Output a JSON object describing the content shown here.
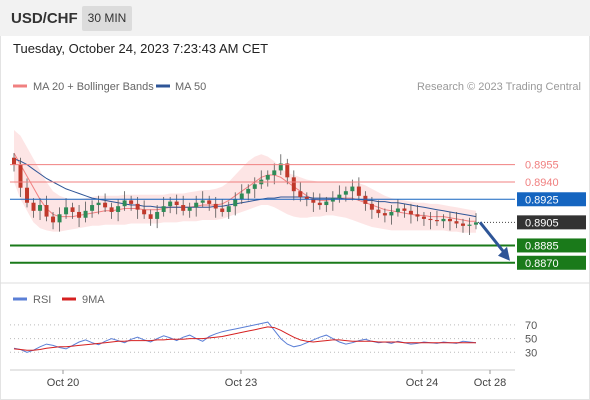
{
  "header": {
    "symbol": "USD/CHF",
    "interval": "30 MIN"
  },
  "datetime": "Tuesday, October 24, 2023 7:23:43 AM CET",
  "legend": {
    "ma20_label": "MA 20 + Bollinger Bands",
    "ma50_label": "MA 50",
    "copyright": "Research © 2023 Trading Central",
    "rsi_label": "RSI",
    "rsi_ma_label": "9MA"
  },
  "colors": {
    "ma20": "#f08080",
    "bollinger_fill": "#fde0e0",
    "ma50": "#2e5597",
    "resistance": "#f08080",
    "pivot": "#1565c0",
    "support": "#1a7a1a",
    "current": "#333333",
    "candle_up": "#2e8b57",
    "candle_down": "#c0392b",
    "rsi": "#5b7fd6",
    "rsi_ma": "#d62020",
    "arrow": "#2e5597"
  },
  "chart_data": [
    {
      "type": "candlestick",
      "pair": "USD/CHF",
      "timeframe": "30 MIN",
      "x_ticks": [
        "Oct 20",
        "Oct 23",
        "Oct 24",
        "Oct 28"
      ],
      "levels": [
        {
          "value": "0.8955",
          "kind": "resistance"
        },
        {
          "value": "0.8940",
          "kind": "resistance"
        },
        {
          "value": "0.8925",
          "kind": "pivot"
        },
        {
          "value": "0.8905",
          "kind": "current"
        },
        {
          "value": "0.8885",
          "kind": "support"
        },
        {
          "value": "0.8870",
          "kind": "support"
        }
      ],
      "ylim": [
        0.8862,
        0.8985
      ],
      "close_series": [
        0.8955,
        0.8935,
        0.8922,
        0.8915,
        0.892,
        0.891,
        0.8905,
        0.8912,
        0.8918,
        0.8914,
        0.8909,
        0.8915,
        0.892,
        0.8922,
        0.8918,
        0.8914,
        0.8919,
        0.8924,
        0.8921,
        0.8916,
        0.8912,
        0.8908,
        0.8914,
        0.8919,
        0.8923,
        0.892,
        0.8915,
        0.8918,
        0.8922,
        0.8924,
        0.8921,
        0.8917,
        0.8914,
        0.8919,
        0.8925,
        0.893,
        0.8934,
        0.8938,
        0.8942,
        0.8946,
        0.895,
        0.8956,
        0.8944,
        0.8932,
        0.8927,
        0.8925,
        0.8922,
        0.892,
        0.8923,
        0.8926,
        0.8929,
        0.8932,
        0.8936,
        0.8928,
        0.8921,
        0.8916,
        0.8913,
        0.8911,
        0.8914,
        0.8917,
        0.8915,
        0.8912,
        0.891,
        0.8908,
        0.8907,
        0.8906,
        0.8908,
        0.8906,
        0.8904,
        0.8902,
        0.8903,
        0.8905
      ],
      "ma20_series": [
        0.8965,
        0.8955,
        0.8945,
        0.8935,
        0.8925,
        0.8917,
        0.8912,
        0.891,
        0.891,
        0.891,
        0.8911,
        0.8912,
        0.8913,
        0.8914,
        0.8915,
        0.8915,
        0.8916,
        0.8917,
        0.8917,
        0.8917,
        0.8916,
        0.8916,
        0.8916,
        0.8917,
        0.8918,
        0.8918,
        0.8918,
        0.8918,
        0.8919,
        0.892,
        0.892,
        0.892,
        0.8921,
        0.8924,
        0.8928,
        0.8932,
        0.8936,
        0.894,
        0.8944,
        0.8946,
        0.8946,
        0.8944,
        0.894,
        0.8936,
        0.8932,
        0.8928,
        0.8925,
        0.8924,
        0.8924,
        0.8925,
        0.8926,
        0.8926,
        0.8926,
        0.8924,
        0.8922,
        0.892,
        0.8918,
        0.8916,
        0.8915,
        0.8914,
        0.8913,
        0.8912,
        0.8911,
        0.8911,
        0.891,
        0.891,
        0.891,
        0.8909,
        0.8908,
        0.8907,
        0.8906,
        0.8906
      ],
      "bb_upper": [
        0.8985,
        0.898,
        0.897,
        0.896,
        0.895,
        0.894,
        0.8932,
        0.8928,
        0.8926,
        0.8925,
        0.8925,
        0.8926,
        0.8927,
        0.8928,
        0.8928,
        0.8928,
        0.8928,
        0.8929,
        0.8929,
        0.8929,
        0.8929,
        0.8929,
        0.8929,
        0.8929,
        0.893,
        0.893,
        0.893,
        0.8931,
        0.8932,
        0.8933,
        0.8933,
        0.8934,
        0.8936,
        0.894,
        0.8946,
        0.8952,
        0.8958,
        0.8962,
        0.8964,
        0.8962,
        0.8958,
        0.8952,
        0.8948,
        0.8946,
        0.8944,
        0.8942,
        0.8941,
        0.894,
        0.894,
        0.894,
        0.894,
        0.894,
        0.894,
        0.8939,
        0.8937,
        0.8934,
        0.8931,
        0.8928,
        0.8926,
        0.8925,
        0.8924,
        0.8923,
        0.8922,
        0.8922,
        0.8921,
        0.8921,
        0.892,
        0.8919,
        0.8918,
        0.8917,
        0.8916,
        0.8915
      ],
      "bb_lower": [
        0.894,
        0.8925,
        0.8915,
        0.8905,
        0.89,
        0.8898,
        0.8897,
        0.8897,
        0.8898,
        0.8899,
        0.89,
        0.8901,
        0.8902,
        0.8902,
        0.8903,
        0.8903,
        0.8903,
        0.8903,
        0.8904,
        0.8904,
        0.8904,
        0.8904,
        0.8904,
        0.8905,
        0.8905,
        0.8905,
        0.8906,
        0.8906,
        0.8906,
        0.8907,
        0.8907,
        0.8907,
        0.8908,
        0.891,
        0.8912,
        0.8914,
        0.8916,
        0.8918,
        0.892,
        0.892,
        0.8918,
        0.8915,
        0.8912,
        0.891,
        0.8909,
        0.8909,
        0.891,
        0.891,
        0.8911,
        0.8911,
        0.891,
        0.8909,
        0.8907,
        0.8905,
        0.8903,
        0.8901,
        0.89,
        0.8899,
        0.8898,
        0.8898,
        0.8898,
        0.8898,
        0.8898,
        0.8898,
        0.8898,
        0.8898,
        0.8898,
        0.8897,
        0.8897,
        0.8896,
        0.8896,
        0.8896
      ],
      "ma50_series": [
        0.896,
        0.8958,
        0.8955,
        0.8951,
        0.8947,
        0.8943,
        0.894,
        0.8937,
        0.8934,
        0.8932,
        0.893,
        0.8928,
        0.8926,
        0.8925,
        0.8924,
        0.8923,
        0.8922,
        0.8921,
        0.892,
        0.892,
        0.8919,
        0.8919,
        0.8918,
        0.8918,
        0.8918,
        0.8918,
        0.8918,
        0.8918,
        0.8918,
        0.8918,
        0.8918,
        0.8919,
        0.8919,
        0.892,
        0.8921,
        0.8922,
        0.8923,
        0.8924,
        0.8925,
        0.8926,
        0.8926,
        0.8927,
        0.8927,
        0.8927,
        0.8927,
        0.8927,
        0.8926,
        0.8926,
        0.8926,
        0.8926,
        0.8926,
        0.8925,
        0.8925,
        0.8925,
        0.8924,
        0.8924,
        0.8923,
        0.8923,
        0.8922,
        0.8922,
        0.8921,
        0.892,
        0.8919,
        0.8918,
        0.8917,
        0.8916,
        0.8915,
        0.8914,
        0.8913,
        0.8912,
        0.8911,
        0.891
      ],
      "forecast_to": 0.887
    },
    {
      "type": "line",
      "name": "RSI",
      "y_ticks": [
        "70",
        "50",
        "30"
      ],
      "ylim": [
        10,
        80
      ],
      "rsi_series": [
        36,
        34,
        30,
        33,
        38,
        42,
        40,
        37,
        35,
        40,
        45,
        48,
        44,
        41,
        46,
        50,
        47,
        44,
        49,
        52,
        48,
        45,
        50,
        54,
        51,
        47,
        52,
        55,
        50,
        46,
        53,
        57,
        60,
        62,
        64,
        66,
        68,
        70,
        72,
        74,
        62,
        50,
        42,
        38,
        40,
        44,
        48,
        52,
        55,
        50,
        45,
        42,
        44,
        47,
        49,
        46,
        44,
        45,
        43,
        46,
        44,
        42,
        43,
        45,
        44,
        43,
        45,
        44,
        43,
        46,
        45,
        44
      ],
      "rsi_ma_series": [
        35,
        34,
        33,
        33,
        34,
        36,
        37,
        38,
        38,
        39,
        40,
        41,
        42,
        43,
        44,
        45,
        46,
        46,
        47,
        47,
        47,
        47,
        48,
        48,
        49,
        49,
        49,
        50,
        50,
        50,
        51,
        52,
        53,
        55,
        57,
        59,
        61,
        63,
        65,
        67,
        66,
        62,
        57,
        52,
        48,
        46,
        45,
        46,
        47,
        48,
        48,
        47,
        46,
        46,
        46,
        46,
        45,
        45,
        45,
        45,
        44,
        44,
        44,
        44,
        44,
        44,
        44,
        44,
        44,
        44,
        44,
        44
      ]
    }
  ]
}
